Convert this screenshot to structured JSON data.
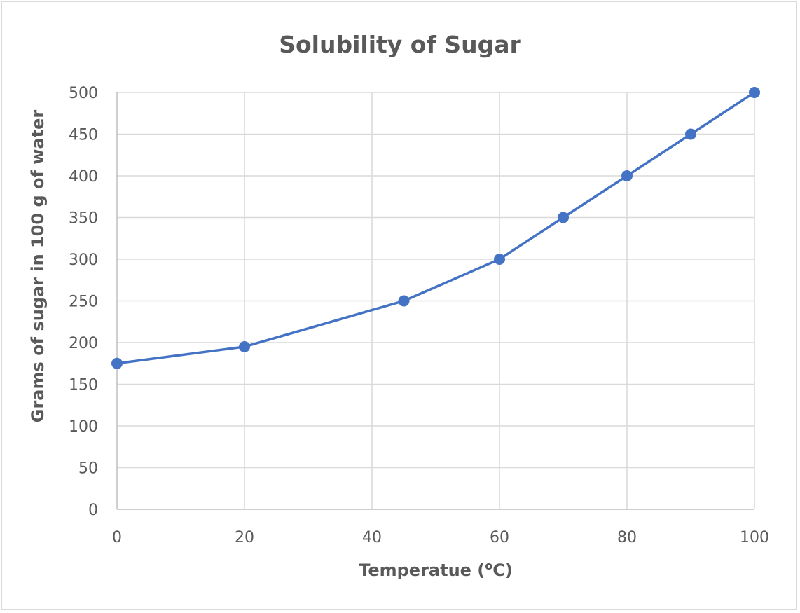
{
  "chart_data": {
    "type": "line",
    "title": "Solubility of Sugar",
    "xlabel": "Temperatue (oC)",
    "ylabel": "Grams of sugar in 100 g of water",
    "xlim": [
      0,
      100
    ],
    "ylim": [
      0,
      500
    ],
    "xticks": [
      0,
      20,
      40,
      60,
      80,
      100
    ],
    "yticks": [
      0,
      50,
      100,
      150,
      200,
      250,
      300,
      350,
      400,
      450,
      500
    ],
    "grid": true,
    "legend": "none",
    "series": [
      {
        "color": "#4472C4",
        "marker": "circle",
        "x": [
          0,
          20,
          45,
          60,
          70,
          80,
          90,
          100
        ],
        "y": [
          175,
          195,
          250,
          300,
          350,
          400,
          450,
          500
        ]
      }
    ]
  }
}
